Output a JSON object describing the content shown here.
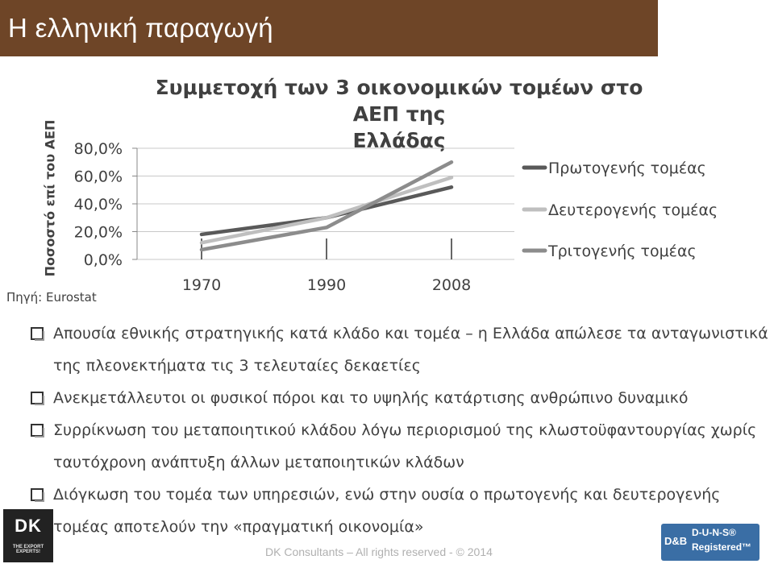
{
  "header": {
    "title": "Η ελληνική παραγωγή"
  },
  "chart_data": {
    "type": "line",
    "title_lines": [
      "Συμμετοχή των 3 οικονομικών τομέων στο ΑΕΠ της",
      "Ελλάδας"
    ],
    "ylabel": "Ποσοστό επί του ΑΕΠ",
    "xlabel": "",
    "categories": [
      "1970",
      "1990",
      "2008"
    ],
    "ylim": [
      0,
      80
    ],
    "yticks": [
      0,
      20,
      40,
      60,
      80
    ],
    "ytick_labels": [
      "0,0%",
      "20,0%",
      "40,0%",
      "60,0%",
      "80,0%"
    ],
    "grid": true,
    "legend_position": "right",
    "series": [
      {
        "name": "Πρωτογενής τομέας",
        "color": "#595959",
        "values": [
          18,
          30,
          52
        ]
      },
      {
        "name": "Δευτερογενής τομέας",
        "color": "#bfbfbf",
        "values": [
          12,
          30,
          59
        ]
      },
      {
        "name": "Τριτογενής τομέας",
        "color": "#8c8c8c",
        "values": [
          7,
          23,
          70
        ]
      }
    ]
  },
  "source": "Πηγή: Eurostat",
  "bullets": [
    "Απουσία εθνικής στρατηγικής κατά κλάδο και τομέα – η Ελλάδα απώλεσε τα ανταγωνιστικά της πλεονεκτήματα τις 3 τελευταίες δεκαετίες",
    "Ανεκμετάλλευτοι οι φυσικοί πόροι και το υψηλής κατάρτισης ανθρώπινο δυναμικό",
    "Συρρίκνωση του μεταποιητικού κλάδου λόγω περιορισμού της κλωστοϋφαντουργίας χωρίς ταυτόχρονη ανάπτυξη άλλων μεταποιητικών κλάδων",
    "Διόγκωση του τομέα των υπηρεσιών, ενώ στην ουσία ο πρωτογενής και δευτερογενής τομέας αποτελούν την «πραγματική οικονομία»"
  ],
  "footer": "DK Consultants – All rights reserved - © 2014",
  "logo_left": {
    "text": "DK",
    "tagline": "THE EXPORT EXPERTS!"
  },
  "logo_right": {
    "brand": "D&B",
    "line1": "D-U-N-S®",
    "line2": "Registered™"
  }
}
